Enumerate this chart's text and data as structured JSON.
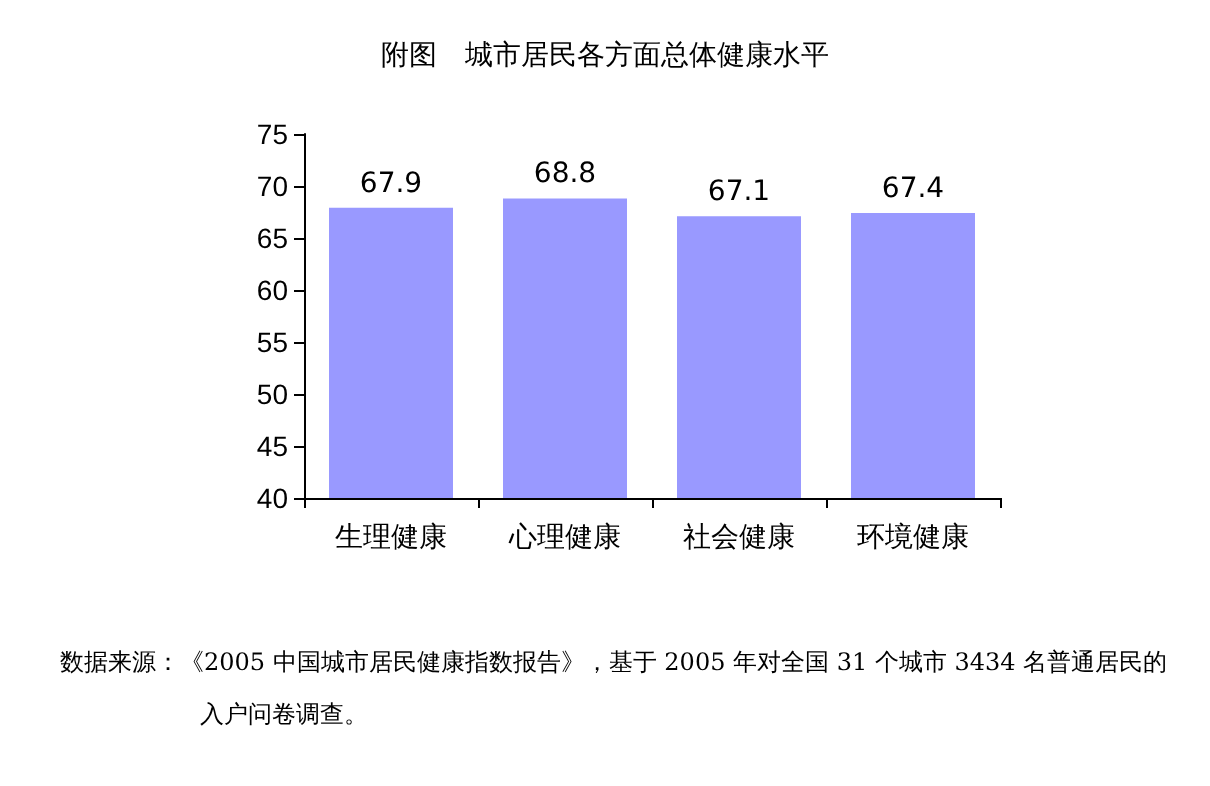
{
  "chart_data": {
    "type": "bar",
    "title": "附图　城市居民各方面总体健康水平",
    "categories": [
      "生理健康",
      "心理健康",
      "社会健康",
      "环境健康"
    ],
    "values": [
      67.9,
      68.8,
      67.1,
      67.4
    ],
    "color": "#9999ff",
    "ylim": [
      40,
      75
    ],
    "yticks": [
      40,
      45,
      50,
      55,
      60,
      65,
      70,
      75
    ],
    "grid": false,
    "data_labels": true,
    "annotations": [
      "数据来源：《2005 中国城市居民健康指数报告》，基于 2005 年对全国 31 个城市 3434 名普通居民的入户问卷调查。"
    ]
  }
}
